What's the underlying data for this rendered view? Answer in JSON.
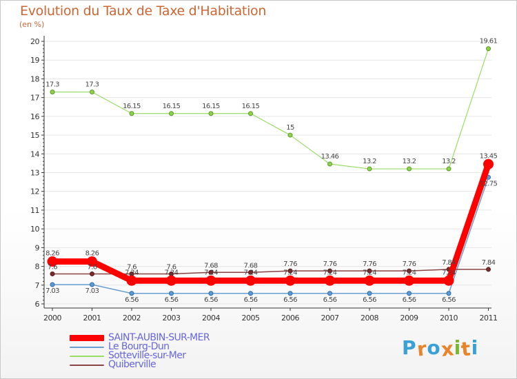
{
  "header": {
    "title": "Evolution du Taux de Taxe d'Habitation",
    "subtitle": "(en %)"
  },
  "logo": {
    "text": "Proxiti",
    "colors": [
      "#3aa0d8",
      "#e8852a",
      "#3aa0d8",
      "#e8852a",
      "#7ab630",
      "#e8852a",
      "#3aa0d8"
    ]
  },
  "colors": {
    "title": "#cc6633",
    "axis": "#333333",
    "grid": "#e6e6e6",
    "label": "#333333"
  },
  "chart_data": {
    "type": "line",
    "title": "Evolution du Taux de Taxe d'Habitation",
    "ylabel": "(en %)",
    "xlabel": "",
    "x": [
      "2000",
      "2001",
      "2002",
      "2003",
      "2004",
      "2005",
      "2006",
      "2007",
      "2008",
      "2009",
      "2010",
      "2011"
    ],
    "ylim": [
      6,
      20
    ],
    "yticks": [
      6,
      7,
      8,
      9,
      10,
      11,
      12,
      13,
      14,
      15,
      16,
      17,
      18,
      19,
      20
    ],
    "grid": false,
    "legend_position": "bottom-left",
    "series": [
      {
        "name": "SAINT-AUBIN-SUR-MER",
        "color": "#ff0000",
        "values": [
          8.26,
          8.26,
          7.24,
          7.24,
          7.24,
          7.24,
          7.24,
          7.24,
          7.24,
          7.24,
          7.24,
          13.45
        ],
        "labels": [
          "8.26",
          "8.26",
          "7.24",
          "7.24",
          "7.24",
          "7.24",
          "7.24",
          "7.24",
          "7.24",
          "7.24",
          "7.24",
          "13.45"
        ]
      },
      {
        "name": "Le Bourg-Dun",
        "color": "#6a9ed0",
        "values": [
          7.03,
          7.03,
          6.56,
          6.56,
          6.56,
          6.56,
          6.56,
          6.56,
          6.56,
          6.56,
          6.56,
          12.75
        ],
        "labels": [
          "7.03",
          "7.03",
          "6.56",
          "6.56",
          "6.56",
          "6.56",
          "6.56",
          "6.56",
          "6.56",
          "6.56",
          "6.56",
          "12.75"
        ]
      },
      {
        "name": "Sotteville-sur-Mer",
        "color": "#99dd66",
        "values": [
          17.3,
          17.3,
          16.15,
          16.15,
          16.15,
          16.15,
          15,
          13.46,
          13.2,
          13.2,
          13.2,
          19.61
        ],
        "labels": [
          "17.3",
          "17.3",
          "16.15",
          "16.15",
          "16.15",
          "16.15",
          "15",
          "13.46",
          "13.2",
          "13.2",
          "13.2",
          "19.61"
        ]
      },
      {
        "name": "Quiberville",
        "color": "#884444",
        "values": [
          7.6,
          7.6,
          7.6,
          7.6,
          7.68,
          7.68,
          7.76,
          7.76,
          7.76,
          7.76,
          7.84,
          7.84
        ],
        "labels": [
          "7.6",
          "7.6",
          "7.6",
          "7.6",
          "7.68",
          "7.68",
          "7.76",
          "7.76",
          "7.76",
          "7.76",
          "7.84",
          "7.84"
        ]
      }
    ]
  }
}
